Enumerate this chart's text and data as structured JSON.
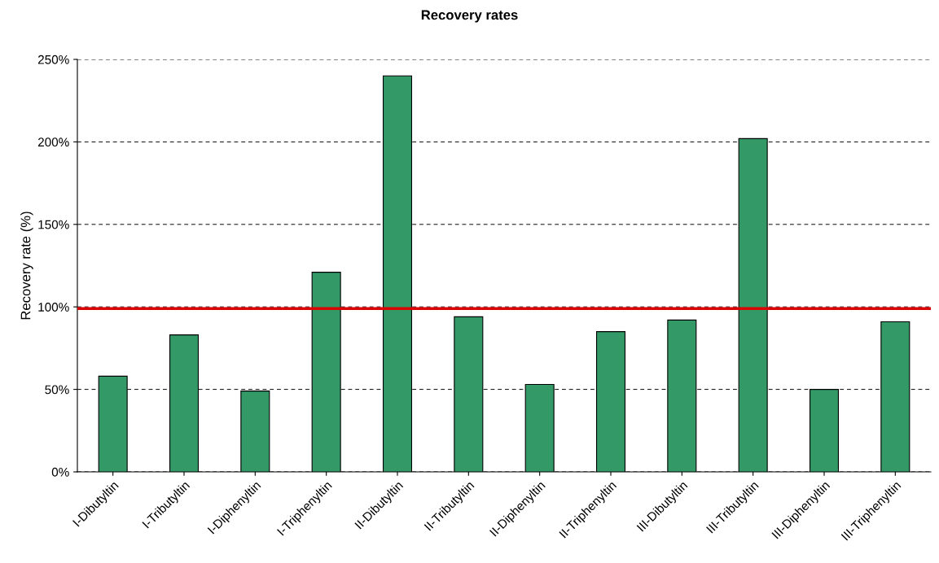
{
  "chart_data": {
    "type": "bar",
    "title": "Recovery rates",
    "ylabel": "Recovery rate (%)",
    "categories": [
      "I-Dibutyltin",
      "I-Tributyltin",
      "I-Diphenyltin",
      "I-Triphenyltin",
      "II-Dibutyltin",
      "II-Tributyltin",
      "II-Diphenyltin",
      "II-Triphenyltin",
      "III-Dibutyltin",
      "III-Tributyltin",
      "III-Diphenyltin",
      "III-Triphenyltin"
    ],
    "values": [
      58,
      83,
      49,
      121,
      240,
      94,
      53,
      85,
      92,
      202,
      50,
      91
    ],
    "color": "#339966",
    "ylim": [
      0,
      250
    ],
    "yticks": [
      {
        "value": 0,
        "label": "0%"
      },
      {
        "value": 50,
        "label": "50%"
      },
      {
        "value": 100,
        "label": "100%"
      },
      {
        "value": 150,
        "label": "150%"
      },
      {
        "value": 200,
        "label": "200%"
      },
      {
        "value": 250,
        "label": "250%"
      }
    ],
    "grid": "y",
    "ref_lines": [
      {
        "axis": "y",
        "value": 99,
        "color": "#dd0000",
        "line_style": "solid"
      }
    ]
  }
}
